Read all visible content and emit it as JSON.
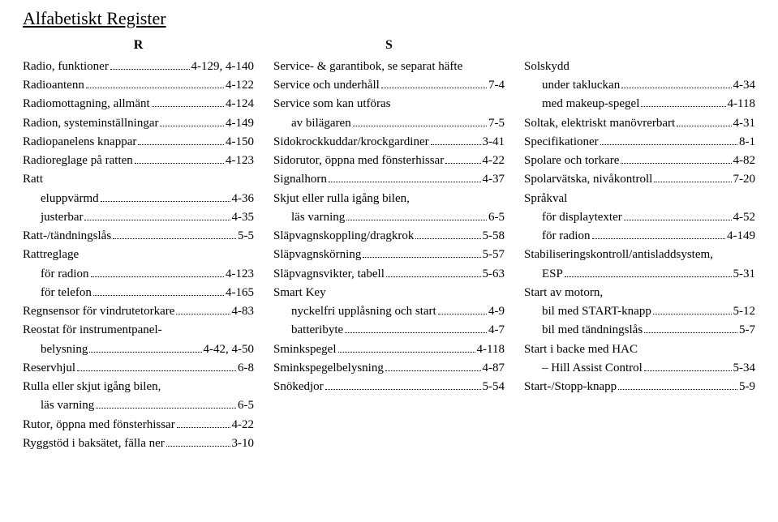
{
  "title": "Alfabetiskt Register",
  "columns": [
    {
      "letter": "R",
      "entries": [
        {
          "label": "Radio, funktioner",
          "page": "4-129, 4-140"
        },
        {
          "label": "Radioantenn",
          "page": "4-122"
        },
        {
          "label": "Radiomottagning, allmänt",
          "page": "4-124"
        },
        {
          "label": "Radion, systeminställningar",
          "page": "4-149"
        },
        {
          "label": "Radiopanelens knappar",
          "page": "4-150"
        },
        {
          "label": "Radioreglage på ratten",
          "page": "4-123"
        },
        {
          "label": "Ratt",
          "plain": true
        },
        {
          "label": "eluppvärmd",
          "page": "4-36",
          "indent": 1
        },
        {
          "label": "justerbar",
          "page": "4-35",
          "indent": 1
        },
        {
          "label": "Ratt-/tändningslås",
          "page": "5-5"
        },
        {
          "label": "Rattreglage",
          "plain": true
        },
        {
          "label": "för radion",
          "page": "4-123",
          "indent": 1
        },
        {
          "label": "för telefon",
          "page": "4-165",
          "indent": 1
        },
        {
          "label": "Regnsensor för vindrutetorkare",
          "page": "4-83"
        },
        {
          "label": "Reostat för instrumentpanel-",
          "plain": true
        },
        {
          "label": "belysning",
          "page": "4-42, 4-50",
          "indent": 1
        },
        {
          "label": "Reservhjul",
          "page": "6-8"
        },
        {
          "label": "Rulla eller skjut igång bilen,",
          "plain": true
        },
        {
          "label": "läs varning",
          "page": "6-5",
          "indent": 1
        },
        {
          "label": "Rutor, öppna med fönsterhissar",
          "page": "4-22"
        },
        {
          "label": "Ryggstöd i baksätet, fälla ner",
          "page": "3-10"
        }
      ]
    },
    {
      "letter": "S",
      "entries": [
        {
          "label": "Service- & garantibok, se separat häfte",
          "plain": true
        },
        {
          "label": "Service och underhåll",
          "page": "7-4"
        },
        {
          "label": "Service som kan utföras",
          "plain": true
        },
        {
          "label": "av bilägaren",
          "page": "7-5",
          "indent": 1
        },
        {
          "label": "Sidokrockkuddar/krockgardiner",
          "page": "3-41"
        },
        {
          "label": "Sidorutor, öppna med fönsterhissar",
          "page": "4-22"
        },
        {
          "label": "Signalhorn",
          "page": "4-37"
        },
        {
          "label": "Skjut eller rulla igång bilen,",
          "plain": true
        },
        {
          "label": "läs varning",
          "page": "6-5",
          "indent": 1
        },
        {
          "label": "Släpvagnskoppling/dragkrok",
          "page": "5-58"
        },
        {
          "label": "Släpvagnskörning",
          "page": "5-57"
        },
        {
          "label": "Släpvagnsvikter, tabell",
          "page": "5-63"
        },
        {
          "label": "Smart Key",
          "plain": true
        },
        {
          "label": "nyckelfri upplåsning och start",
          "page": "4-9",
          "indent": 1
        },
        {
          "label": "batteribyte",
          "page": "4-7",
          "indent": 1
        },
        {
          "label": "Sminkspegel",
          "page": "4-118"
        },
        {
          "label": "Sminkspegelbelysning",
          "page": "4-87"
        },
        {
          "label": "Snökedjor",
          "page": "5-54"
        }
      ]
    },
    {
      "letter": "",
      "entries": [
        {
          "label": "Solskydd",
          "plain": true
        },
        {
          "label": "under takluckan",
          "page": "4-34",
          "indent": 1
        },
        {
          "label": "med makeup-spegel",
          "page": "4-118",
          "indent": 1
        },
        {
          "label": "Soltak, elektriskt manövrerbart",
          "page": "4-31"
        },
        {
          "label": "Specifikationer",
          "page": "8-1"
        },
        {
          "label": "Spolare och torkare",
          "page": "4-82"
        },
        {
          "label": "Spolarvätska, nivåkontroll",
          "page": "7-20"
        },
        {
          "label": "Språkval",
          "plain": true
        },
        {
          "label": "för displaytexter",
          "page": "4-52",
          "indent": 1
        },
        {
          "label": "för radion",
          "page": "4-149",
          "indent": 1
        },
        {
          "label": "Stabiliseringskontroll/antisladdsystem,",
          "plain": true
        },
        {
          "label": "ESP",
          "page": "5-31",
          "indent": 1
        },
        {
          "label": "Start av motorn,",
          "plain": true
        },
        {
          "label": "bil med START-knapp",
          "page": "5-12",
          "indent": 1
        },
        {
          "label": "bil med tändningslås",
          "page": "5-7",
          "indent": 1
        },
        {
          "label": "Start i backe med HAC",
          "plain": true
        },
        {
          "label": "– Hill Assist Control",
          "page": "5-34",
          "indent": 1
        },
        {
          "label": "Start-/Stopp-knapp",
          "page": "5-9"
        }
      ]
    }
  ]
}
